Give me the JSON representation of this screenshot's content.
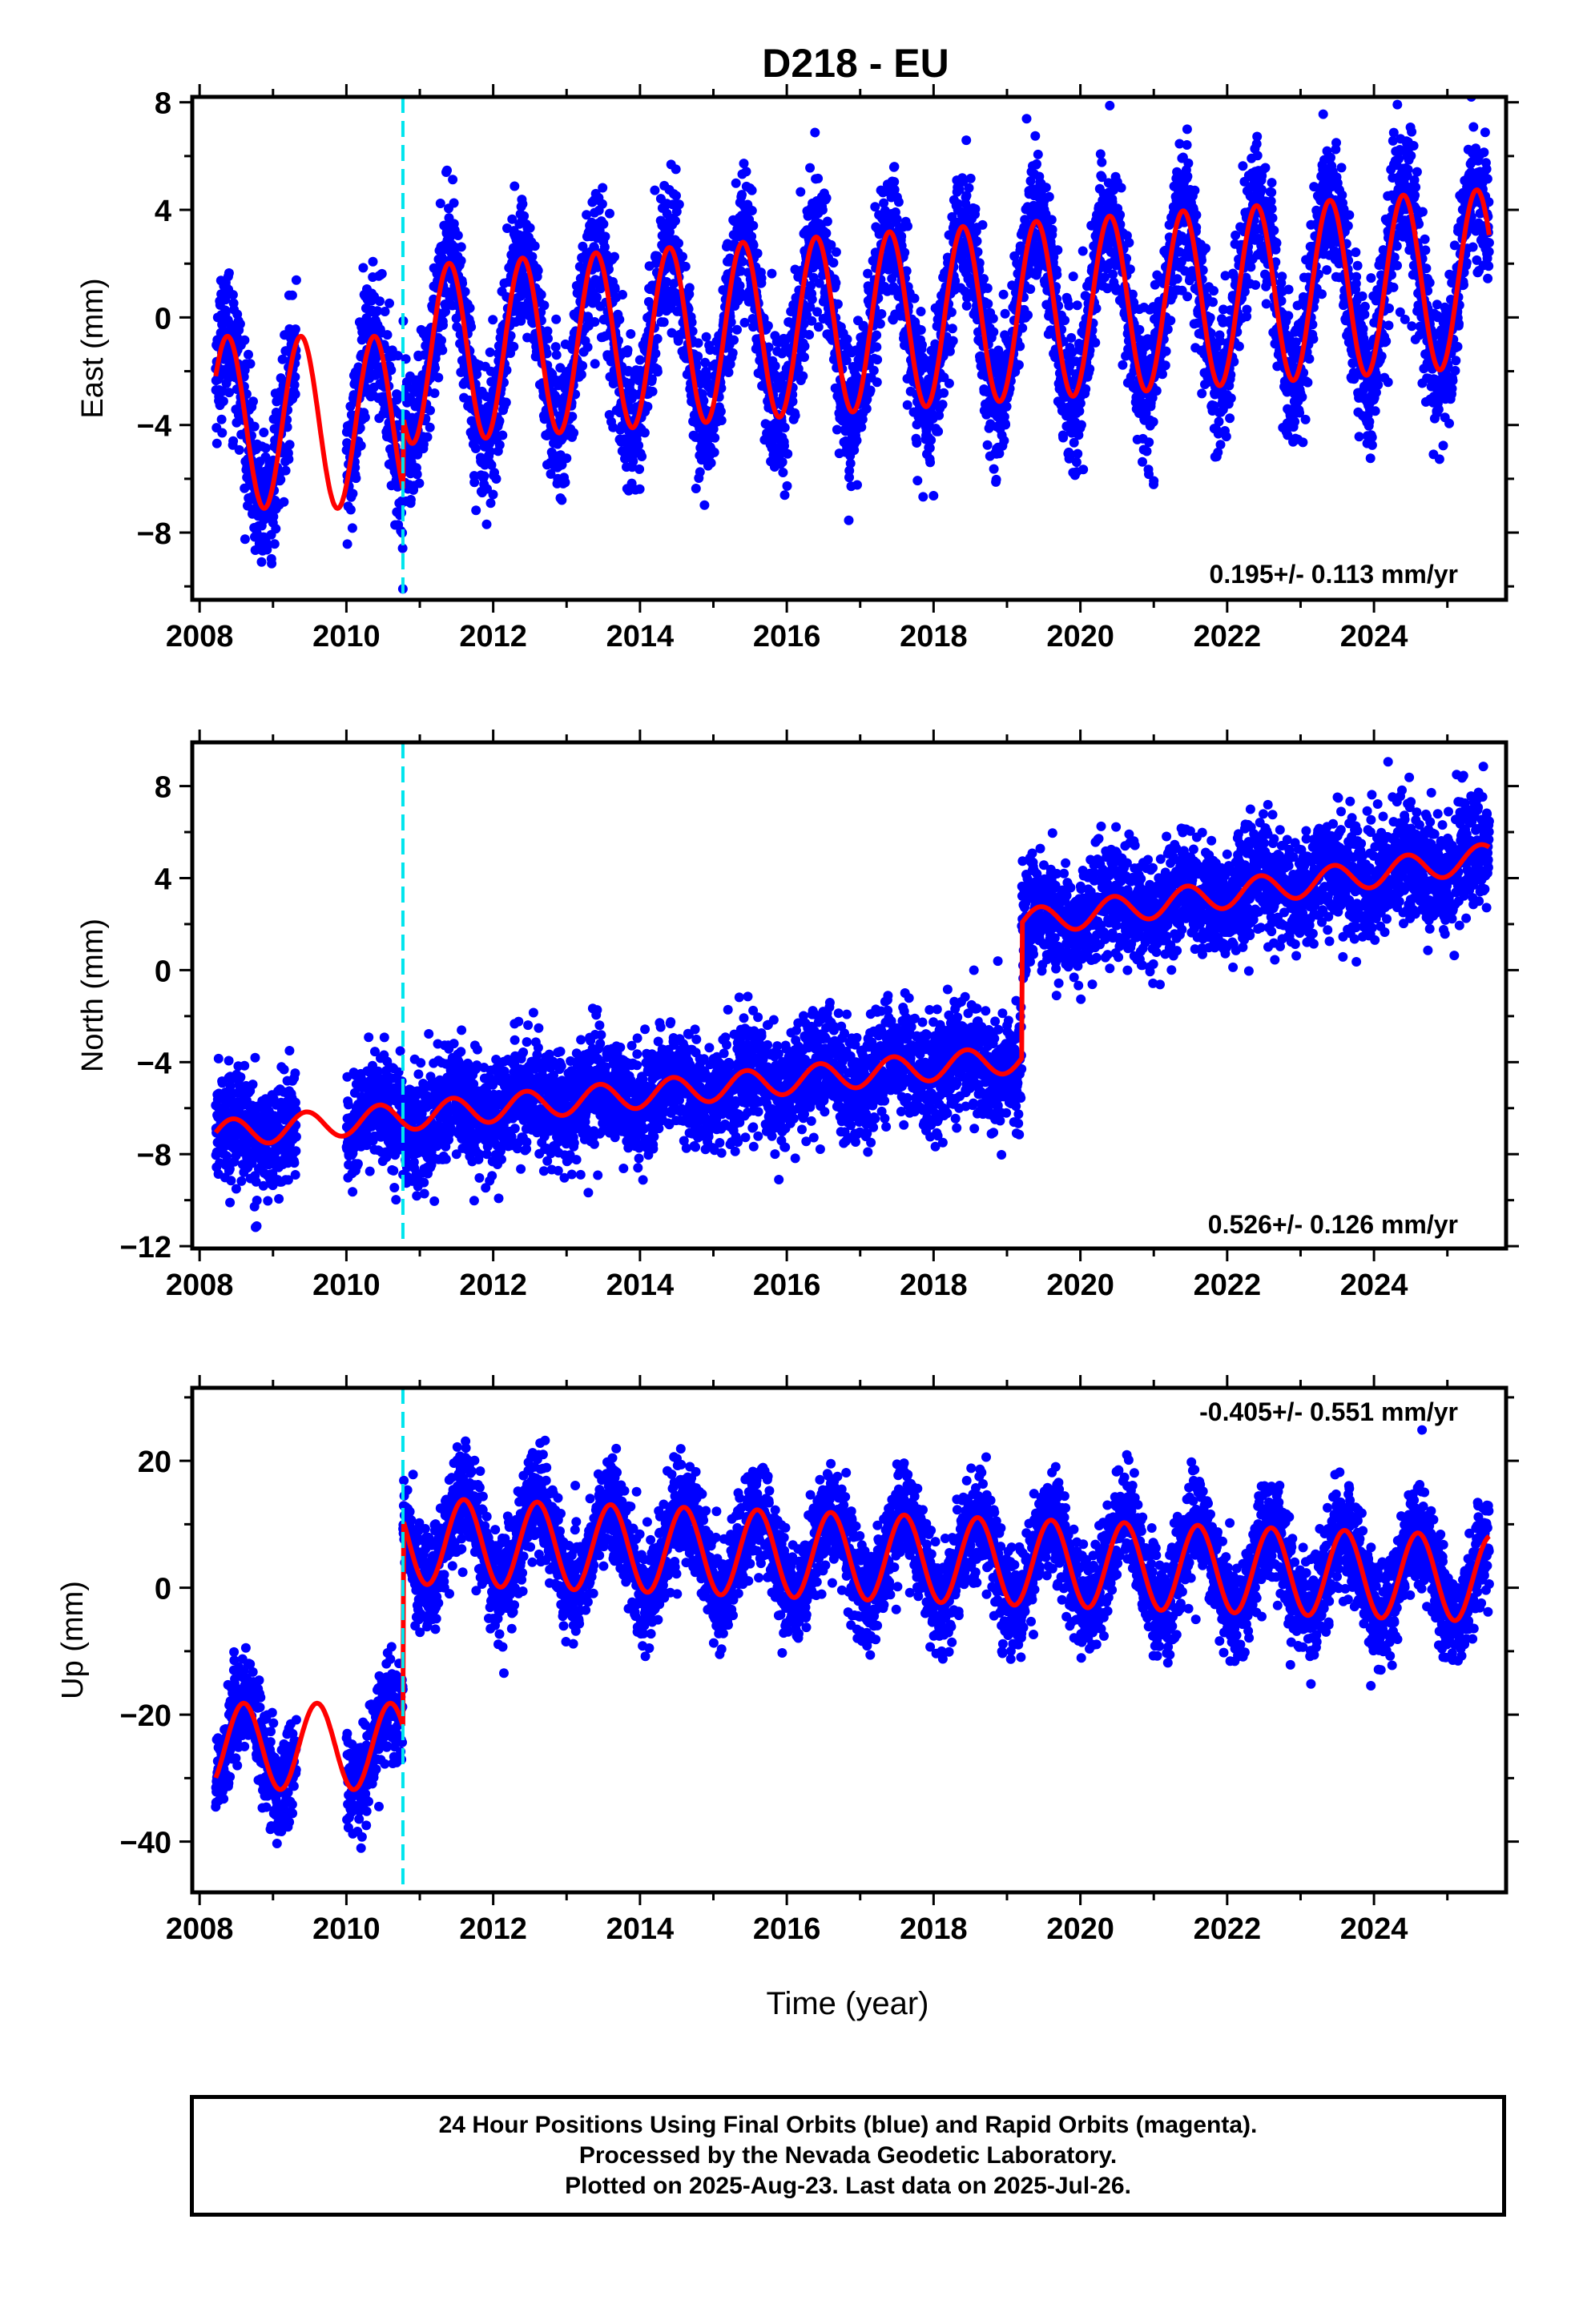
{
  "title": "D218 - EU",
  "xlabel": "Time (year)",
  "footer": {
    "line1": "24 Hour Positions Using Final Orbits (blue) and Rapid Orbits (magenta).",
    "line2": "Processed by the Nevada Geodetic Laboratory.",
    "line3": "Plotted on 2025-Aug-23. Last data on 2025-Jul-26."
  },
  "colors": {
    "data": "#0000ff",
    "model": "#ff0000",
    "break": "#00e5ee",
    "axis": "#000000"
  },
  "chart_data": [
    {
      "type": "scatter",
      "name": "east",
      "ylabel": "East (mm)",
      "xlim": [
        2007.9,
        2025.8
      ],
      "ylim": [
        -10.5,
        8.2
      ],
      "xticks": [
        2008,
        2010,
        2012,
        2014,
        2016,
        2018,
        2020,
        2022,
        2024
      ],
      "yticks": [
        -8,
        -4,
        0,
        4,
        8
      ],
      "rate_label": "0.195+/- 0.113 mm/yr",
      "break_epoch": 2010.77,
      "data_span": [
        2008.22,
        2025.57
      ],
      "gap": [
        2009.32,
        2010.0
      ],
      "model": {
        "segments": [
          {
            "start": 2008.22,
            "end": 2010.77,
            "offset": -3.9,
            "trend": 0.0,
            "annual": 3.2,
            "phase_peak": 0.38
          },
          {
            "start": 2010.77,
            "end": 2025.57,
            "offset": 0.0,
            "trend": 0.195,
            "annual": 3.3,
            "phase_peak": 0.4
          }
        ]
      },
      "noise_mm": 1.3
    },
    {
      "type": "scatter",
      "name": "north",
      "ylabel": "North (mm)",
      "xlim": [
        2007.9,
        2025.8
      ],
      "ylim": [
        -12.1,
        9.9
      ],
      "xticks": [
        2008,
        2010,
        2012,
        2014,
        2016,
        2018,
        2020,
        2022,
        2024
      ],
      "yticks": [
        -12,
        -8,
        -4,
        0,
        4,
        8
      ],
      "rate_label": "0.526+/- 0.126 mm/yr",
      "break_epoch": 2010.77,
      "data_span": [
        2008.22,
        2025.57
      ],
      "gap": [
        2009.32,
        2010.0
      ],
      "model": {
        "segments": [
          {
            "start": 2008.22,
            "end": 2019.2,
            "offset": -4.2,
            "trend": 0.3,
            "annual": 0.6,
            "phase_peak": 0.45
          },
          {
            "start": 2019.2,
            "end": 2025.57,
            "offset": 1.5,
            "trend": 0.45,
            "annual": 0.6,
            "phase_peak": 0.45
          }
        ]
      },
      "noise_mm": 1.2
    },
    {
      "type": "scatter",
      "name": "up",
      "ylabel": "Up (mm)",
      "xlim": [
        2007.9,
        2025.8
      ],
      "ylim": [
        -48,
        31.5
      ],
      "xticks": [
        2008,
        2010,
        2012,
        2014,
        2016,
        2018,
        2020,
        2022,
        2024
      ],
      "yticks": [
        -40,
        -20,
        0,
        20
      ],
      "rate_label": "-0.405+/- 0.551 mm/yr",
      "break_epoch": 2010.77,
      "data_span": [
        2008.22,
        2025.57
      ],
      "gap": [
        2009.32,
        2010.0
      ],
      "model": {
        "segments": [
          {
            "start": 2008.22,
            "end": 2010.77,
            "offset": -25.0,
            "trend": 0.0,
            "annual": 6.8,
            "phase_peak": 0.6
          },
          {
            "start": 2010.77,
            "end": 2025.57,
            "offset": 4.5,
            "trend": -0.405,
            "annual": 6.8,
            "phase_peak": 0.6
          }
        ]
      },
      "noise_mm": 4.0
    }
  ]
}
